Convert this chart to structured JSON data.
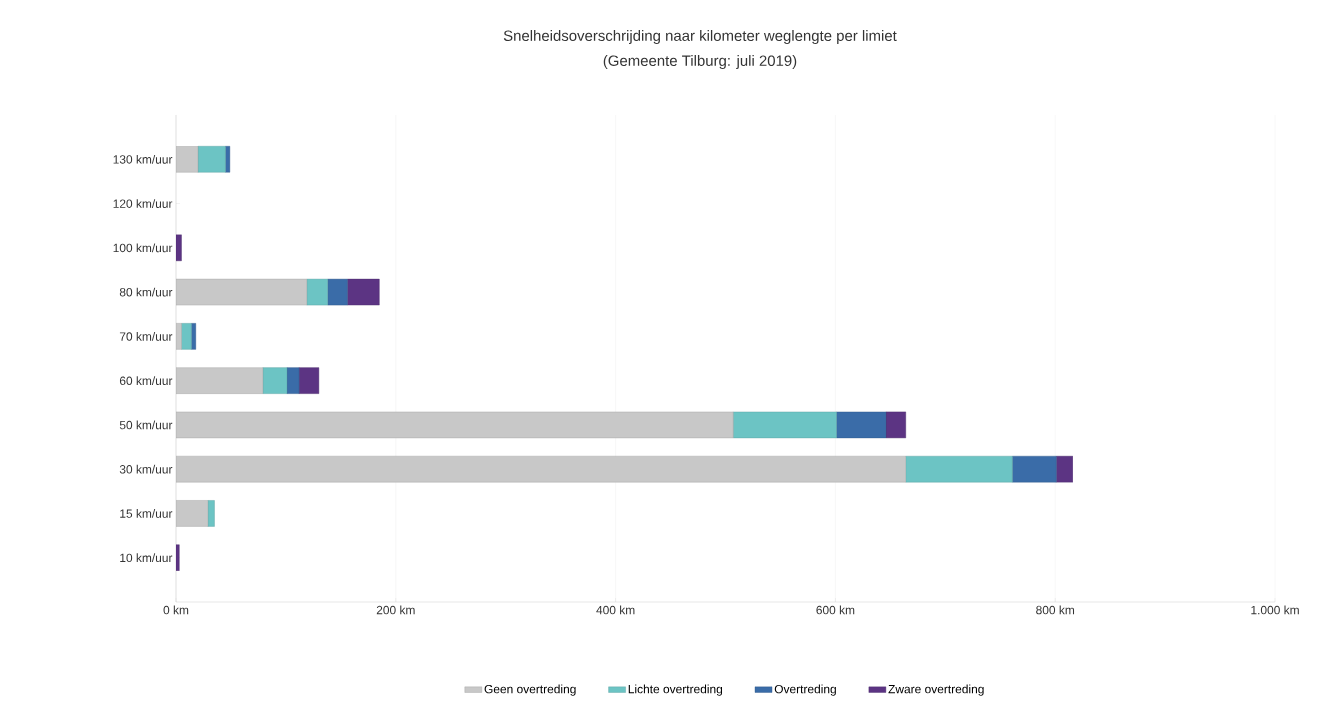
{
  "chart_data": {
    "type": "bar",
    "orientation": "horizontal",
    "stacked": true,
    "title": "Snelheidsoverschrijding naar kilometer weglengte per limiet",
    "subtitle": "(Gemeente Tilburg: juli 2019)",
    "categories": [
      "130 km/uur",
      "120 km/uur",
      "100 km/uur",
      "80 km/uur",
      "70 km/uur",
      "60 km/uur",
      "50 km/uur",
      "30 km/uur",
      "15 km/uur",
      "10 km/uur"
    ],
    "series": [
      {
        "name": "Geen overtreding",
        "color": "#c8c8c8",
        "values": [
          20,
          null,
          0,
          119,
          5,
          79,
          507,
          664,
          29,
          0
        ]
      },
      {
        "name": "Lichte overtreding",
        "color": "#6cc4c4",
        "values": [
          25,
          0,
          0,
          19,
          9,
          22,
          94,
          97,
          6,
          0
        ]
      },
      {
        "name": "Overtreding",
        "color": "#3a6ca8",
        "values": [
          4,
          0,
          0,
          18,
          4,
          11,
          45,
          40,
          0,
          0
        ]
      },
      {
        "name": "Zware overtreding",
        "color": "#5c3483",
        "values": [
          0,
          0,
          5,
          29,
          0,
          18,
          18,
          15,
          0,
          3
        ]
      }
    ],
    "xlim": [
      0,
      1000
    ],
    "xticks": [
      {
        "value": 0,
        "label": "0 km"
      },
      {
        "value": 200,
        "label": "200 km"
      },
      {
        "value": 400,
        "label": "400 km"
      },
      {
        "value": 600,
        "label": "600 km"
      },
      {
        "value": 800,
        "label": "800 km"
      },
      {
        "value": 1000,
        "label": "1.000 km"
      }
    ],
    "grid": "x",
    "legend": "bottom"
  }
}
